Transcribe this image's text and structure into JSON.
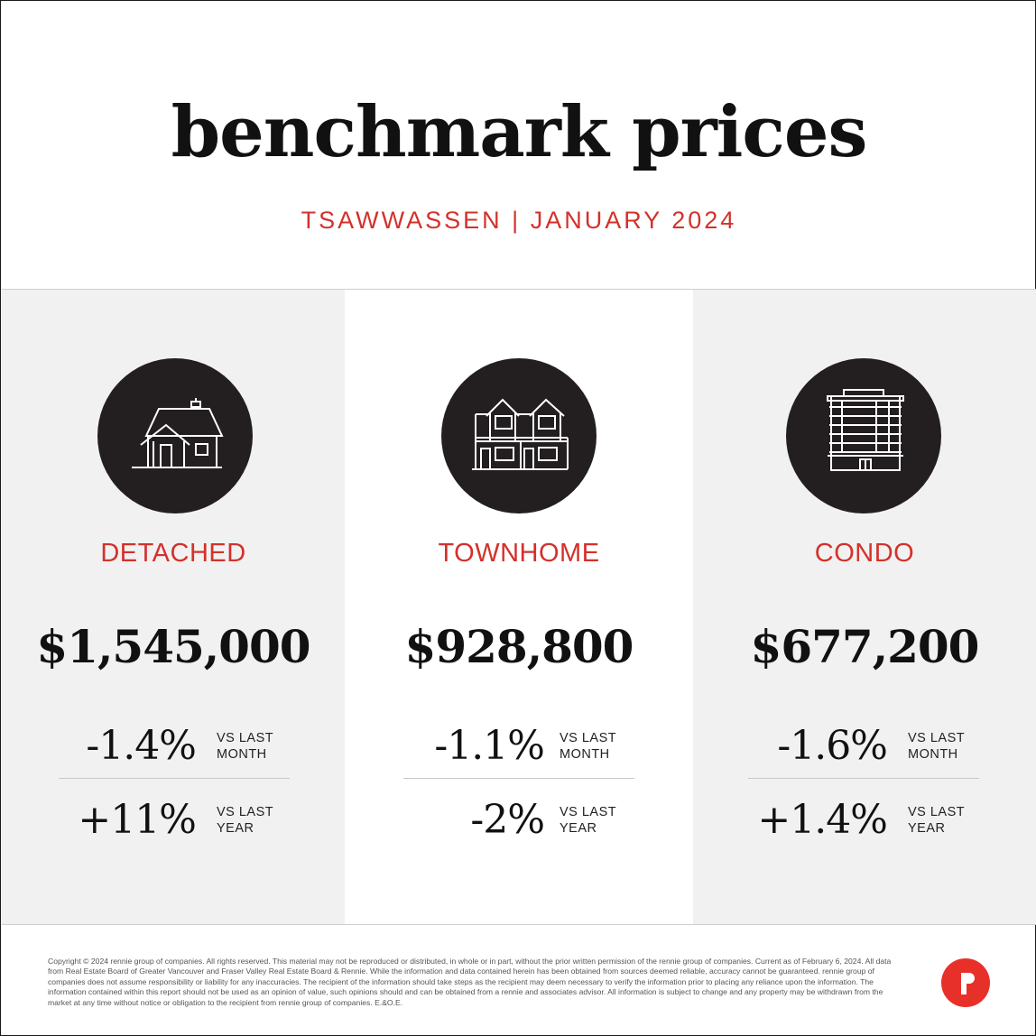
{
  "header": {
    "title": "benchmark prices",
    "subtitle": "TSAWWASSEN | JANUARY 2024"
  },
  "colors": {
    "accent": "#d3312b",
    "icon_circle": "#231f20",
    "panel_gray": "#f1f1f1",
    "logo": "#e8302a"
  },
  "panels": [
    {
      "icon": "detached-house-icon",
      "type": "DETACHED",
      "price": "$1,545,000",
      "month_change": "-1.4%",
      "month_label_1": "VS LAST",
      "month_label_2": "MONTH",
      "year_change": "+11%",
      "year_label_1": "VS LAST",
      "year_label_2": "YEAR"
    },
    {
      "icon": "townhome-icon",
      "type": "TOWNHOME",
      "price": "$928,800",
      "month_change": "-1.1%",
      "month_label_1": "VS LAST",
      "month_label_2": "MONTH",
      "year_change": "-2%",
      "year_label_1": "VS LAST",
      "year_label_2": "YEAR"
    },
    {
      "icon": "condo-building-icon",
      "type": "CONDO",
      "price": "$677,200",
      "month_change": "-1.6%",
      "month_label_1": "VS LAST",
      "month_label_2": "MONTH",
      "year_change": "+1.4%",
      "year_label_1": "VS LAST",
      "year_label_2": "YEAR"
    }
  ],
  "footer": {
    "copyright": "Copyright © 2024 rennie group of companies. All rights reserved. This material may not be reproduced or distributed, in whole or in part, without the prior written permission of the rennie group of companies. Current as of February 6, 2024. All data from Real Estate Board of Greater Vancouver and Fraser Valley Real Estate Board & Rennie. While the information and data contained herein has been obtained from sources deemed reliable, accuracy cannot be guaranteed. rennie group of companies does not assume responsibility or liability for any inaccuracies. The recipient of the information should take steps as the recipient may deem necessary to verify the information prior to placing any reliance upon the information. The information contained within this report should not be used as an opinion of value, such opinions should and can be obtained from a rennie and associates advisor. All information is subject to change and any property may be withdrawn from the market at any time without notice or obligation to the recipient from rennie group of companies. E.&O.E.",
    "logo_icon": "rennie-logo-icon"
  }
}
